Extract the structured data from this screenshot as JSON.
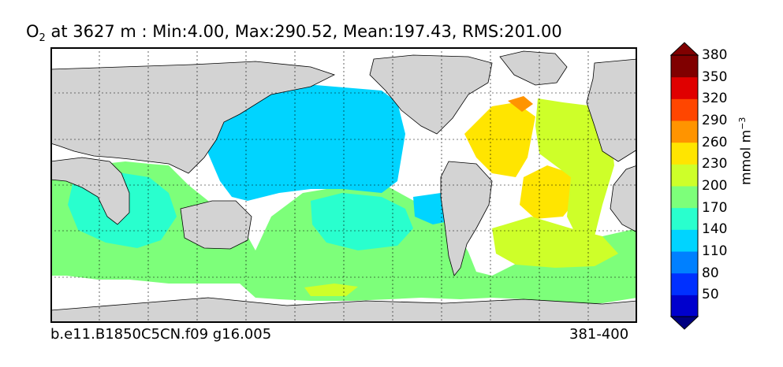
{
  "title": {
    "species": "O",
    "species_sub": "2",
    "rest": " at 3627 m : Min:4.00, Max:290.52, Mean:197.43, RMS:201.00"
  },
  "footer": {
    "case": "b.e11.B1850C5CN.f09 g16.005",
    "years": "381-400"
  },
  "colorbar": {
    "label": "mmol m",
    "label_sup": "−3",
    "ticks": [
      "50",
      "80",
      "110",
      "140",
      "170",
      "200",
      "230",
      "260",
      "290",
      "320",
      "350",
      "380"
    ],
    "colors": [
      "#000080",
      "#0000cd",
      "#0030ff",
      "#0080ff",
      "#00d4ff",
      "#29ffce",
      "#7dff7a",
      "#ceff29",
      "#ffe500",
      "#ff9400",
      "#ff4600",
      "#e00000",
      "#800000"
    ],
    "land_color": "#d3d3d3"
  }
}
